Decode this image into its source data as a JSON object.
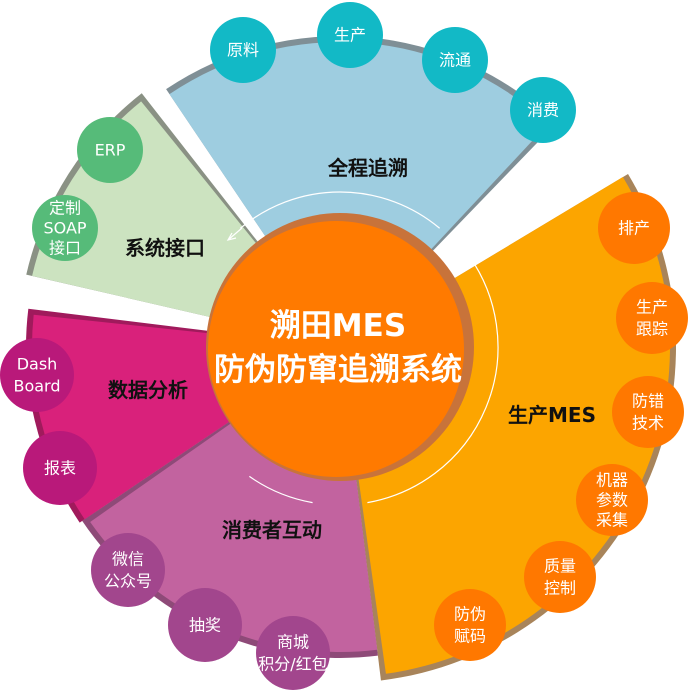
{
  "center": {
    "line1": "溯田MES",
    "line2": "防伪防窜追溯系统",
    "color": "#ff7a00",
    "ring_color": "#c8733a"
  },
  "sectors": [
    {
      "id": "trace",
      "label": "全程追溯",
      "color": "#9ecde0",
      "edge": "#7f8f96",
      "bubble_color": "#12b9c6",
      "items": [
        [
          "原料"
        ],
        [
          "生产"
        ],
        [
          "流通"
        ],
        [
          "消费"
        ]
      ]
    },
    {
      "id": "mes",
      "label": "生产MES",
      "color": "#fca500",
      "edge": "#a8845a",
      "bubble_color": "#ff7800",
      "items": [
        [
          "排产"
        ],
        [
          "生产",
          "跟踪"
        ],
        [
          "防错",
          "技术"
        ],
        [
          "机器",
          "参数",
          "采集"
        ],
        [
          "质量",
          "控制"
        ],
        [
          "防伪",
          "赋码"
        ]
      ]
    },
    {
      "id": "consumer",
      "label": "消费者互动",
      "color": "#c2639f",
      "edge": "#8e4a78",
      "bubble_color": "#a2468d",
      "items": [
        [
          "微信",
          "公众号"
        ],
        [
          "抽奖"
        ],
        [
          "商城",
          "积分/红包"
        ]
      ]
    },
    {
      "id": "analysis",
      "label": "数据分析",
      "color": "#d9217b",
      "edge": "#a01a5c",
      "bubble_color": "#b9197a",
      "items": [
        [
          "Dash",
          "Board"
        ],
        [
          "报表"
        ]
      ]
    },
    {
      "id": "interface",
      "label": "系统接口",
      "color": "#cce3c0",
      "edge": "#8a9184",
      "bubble_color": "#56bb79",
      "items": [
        [
          "ERP"
        ],
        [
          "定制",
          "SOAP",
          "接口"
        ]
      ]
    }
  ]
}
